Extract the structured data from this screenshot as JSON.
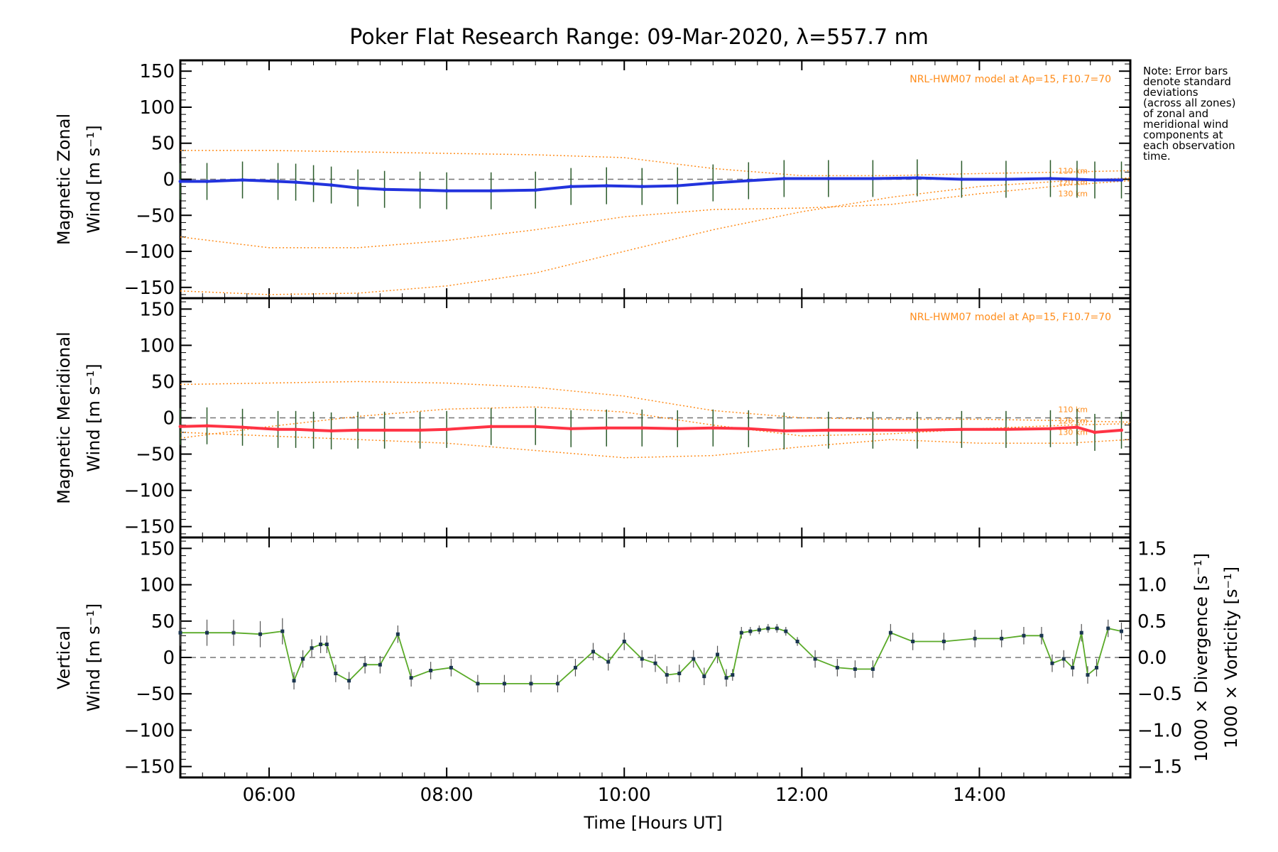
{
  "title": "Poker Flat Research Range: 09-Mar-2020, λ=557.7 nm",
  "note": [
    "Note: Error bars",
    "denote standard",
    "deviations",
    "(across all zones)",
    "of zonal and",
    "meridional wind",
    "components at",
    "each observation",
    "time."
  ],
  "colors": {
    "zonal": "#2233dd",
    "meridional": "#ff3344",
    "vertical": "#5aaa28",
    "model": "#ff8c1a",
    "divergence": "#4aa8d8",
    "vorticity": "#ff5a8a",
    "errorbar": "#000000"
  },
  "chart_data": [
    {
      "type": "line",
      "panel": "zonal",
      "ylabel_lines": [
        "Magnetic Zonal",
        "Wind [m s⁻¹]"
      ],
      "ylim": [
        -165,
        165
      ],
      "yticks": [
        "150",
        "100",
        "50",
        "0",
        "−50",
        "−100",
        "−150"
      ],
      "ytick_values": [
        150,
        100,
        50,
        0,
        -50,
        -100,
        -150
      ],
      "model_label": "NRL-HWM07 model at Ap=15, F10.7=70",
      "altitude_labels": [
        "110 km",
        "120 km",
        "130 km"
      ],
      "x": [
        5.0,
        5.3,
        5.7,
        6.1,
        6.3,
        6.5,
        6.7,
        7.0,
        7.3,
        7.7,
        8.0,
        8.5,
        9.0,
        9.4,
        9.8,
        10.2,
        10.6,
        11.0,
        11.4,
        11.8,
        12.3,
        12.8,
        13.3,
        13.8,
        14.3,
        14.8,
        15.1,
        15.3,
        15.6
      ],
      "values": [
        -3,
        -3,
        -1,
        -3,
        -4,
        -6,
        -8,
        -12,
        -14,
        -15,
        -16,
        -16,
        -15,
        -10,
        -9,
        -10,
        -9,
        -5,
        -2,
        1,
        1,
        1,
        2,
        0,
        0,
        1,
        0,
        -1,
        -1
      ],
      "model_curves": [
        {
          "name": "110 km",
          "x": [
            5.0,
            6.0,
            7.0,
            8.0,
            9.0,
            10.0,
            11.0,
            12.0,
            13.0,
            14.0,
            15.0,
            15.7
          ],
          "values": [
            40,
            40,
            38,
            36,
            34,
            30,
            15,
            5,
            5,
            8,
            10,
            12
          ]
        },
        {
          "name": "120 km",
          "x": [
            5.0,
            6.0,
            7.0,
            8.0,
            9.0,
            10.0,
            11.0,
            12.0,
            13.0,
            14.0,
            15.0,
            15.7
          ],
          "values": [
            -80,
            -95,
            -95,
            -85,
            -70,
            -52,
            -42,
            -40,
            -35,
            -20,
            -8,
            -2
          ]
        },
        {
          "name": "130 km",
          "x": [
            5.0,
            6.0,
            7.0,
            8.0,
            9.0,
            10.0,
            11.0,
            12.0,
            13.0,
            14.0,
            15.0,
            15.7
          ],
          "values": [
            -155,
            -160,
            -158,
            -148,
            -130,
            -100,
            -70,
            -45,
            -25,
            -10,
            -2,
            2
          ]
        }
      ]
    },
    {
      "type": "line",
      "panel": "meridional",
      "ylabel_lines": [
        "Magnetic Meridional",
        "Wind [m s⁻¹]"
      ],
      "ylim": [
        -165,
        165
      ],
      "yticks": [
        "150",
        "100",
        "50",
        "0",
        "−50",
        "−100",
        "−150"
      ],
      "ytick_values": [
        150,
        100,
        50,
        0,
        -50,
        -100,
        -150
      ],
      "model_label": "NRL-HWM07 model at Ap=15, F10.7=70",
      "altitude_labels": [
        "110 km",
        "120 km",
        "130 km"
      ],
      "x": [
        5.0,
        5.3,
        5.7,
        6.1,
        6.3,
        6.5,
        6.7,
        7.0,
        7.3,
        7.7,
        8.0,
        8.5,
        9.0,
        9.4,
        9.8,
        10.2,
        10.6,
        11.0,
        11.4,
        11.8,
        12.3,
        12.8,
        13.3,
        13.8,
        14.3,
        14.8,
        15.1,
        15.3,
        15.6
      ],
      "values": [
        -12,
        -11,
        -13,
        -16,
        -16,
        -17,
        -18,
        -17,
        -17,
        -17,
        -16,
        -12,
        -12,
        -15,
        -14,
        -14,
        -15,
        -14,
        -15,
        -18,
        -17,
        -17,
        -17,
        -16,
        -16,
        -15,
        -13,
        -20,
        -17
      ],
      "model_curves": [
        {
          "name": "110 km",
          "x": [
            5.0,
            6.0,
            7.0,
            8.0,
            9.0,
            10.0,
            11.0,
            12.0,
            13.0,
            14.0,
            15.0,
            15.7
          ],
          "values": [
            46,
            48,
            50,
            48,
            42,
            30,
            10,
            0,
            -2,
            -2,
            -4,
            -6
          ]
        },
        {
          "name": "120 km",
          "x": [
            5.0,
            6.0,
            7.0,
            8.0,
            9.0,
            10.0,
            11.0,
            12.0,
            13.0,
            14.0,
            15.0,
            15.7
          ],
          "values": [
            -28,
            -12,
            2,
            12,
            15,
            8,
            -10,
            -25,
            -22,
            -15,
            -10,
            -8
          ]
        },
        {
          "name": "130 km",
          "x": [
            5.0,
            6.0,
            7.0,
            8.0,
            9.0,
            10.0,
            11.0,
            12.0,
            13.0,
            14.0,
            15.0,
            15.7
          ],
          "values": [
            -20,
            -25,
            -30,
            -35,
            -45,
            -55,
            -52,
            -40,
            -30,
            -35,
            -35,
            -30
          ]
        }
      ]
    },
    {
      "type": "line",
      "panel": "vertical",
      "ylabel_lines": [
        "Vertical",
        "Wind [m s⁻¹]"
      ],
      "ylim": [
        -165,
        165
      ],
      "yticks": [
        "150",
        "100",
        "50",
        "0",
        "−50",
        "−100",
        "−150"
      ],
      "ytick_values": [
        150,
        100,
        50,
        0,
        -50,
        -100,
        -150
      ],
      "right_ylabels": [
        "1000 × Divergence [s⁻¹]",
        "1000 × Vorticity [s⁻¹]"
      ],
      "right_ylim": [
        -1.65,
        1.65
      ],
      "right_yticks": [
        "1.5",
        "1.0",
        "0.5",
        "0.0",
        "−0.5",
        "−1.0",
        "−1.5"
      ],
      "right_ytick_values": [
        1.5,
        1.0,
        0.5,
        0.0,
        -0.5,
        -1.0,
        -1.5
      ],
      "x": [
        5.0,
        5.3,
        5.6,
        5.9,
        6.15,
        6.28,
        6.38,
        6.48,
        6.58,
        6.65,
        6.75,
        6.9,
        7.08,
        7.25,
        7.45,
        7.6,
        7.82,
        8.05,
        8.35,
        8.65,
        8.95,
        9.25,
        9.45,
        9.65,
        9.82,
        10.0,
        10.2,
        10.35,
        10.48,
        10.62,
        10.78,
        10.9,
        11.05,
        11.15,
        11.22,
        11.32,
        11.42,
        11.52,
        11.62,
        11.72,
        11.82,
        11.95,
        12.15,
        12.4,
        12.6,
        12.8,
        13.0,
        13.25,
        13.6,
        13.95,
        14.25,
        14.5,
        14.7,
        14.82,
        14.95,
        15.05,
        15.15,
        15.22,
        15.32,
        15.45,
        15.6
      ],
      "values": [
        34,
        34,
        34,
        32,
        36,
        -32,
        -2,
        13,
        18,
        18,
        -22,
        -32,
        -10,
        -10,
        32,
        -28,
        -18,
        -14,
        -36,
        -36,
        -36,
        -36,
        -14,
        8,
        -6,
        22,
        -2,
        -8,
        -24,
        -22,
        -2,
        -26,
        4,
        -28,
        -24,
        34,
        36,
        38,
        40,
        40,
        36,
        22,
        -2,
        -14,
        -16,
        -16,
        34,
        22,
        22,
        26,
        26,
        30,
        30,
        -8,
        -2,
        -14,
        34,
        -24,
        -14,
        40,
        36
      ],
      "errors": [
        18,
        18,
        18,
        18,
        18,
        12,
        12,
        12,
        12,
        12,
        12,
        12,
        12,
        12,
        12,
        12,
        12,
        12,
        12,
        12,
        12,
        12,
        12,
        12,
        12,
        12,
        12,
        12,
        12,
        12,
        12,
        12,
        12,
        12,
        8,
        8,
        6,
        6,
        6,
        6,
        6,
        6,
        12,
        12,
        12,
        12,
        12,
        12,
        12,
        12,
        12,
        12,
        12,
        12,
        12,
        12,
        12,
        12,
        12,
        12,
        12
      ]
    }
  ],
  "x_axis": {
    "label": "Time [Hours UT]",
    "range": [
      5.0,
      15.7
    ],
    "ticks": [
      "06:00",
      "08:00",
      "10:00",
      "12:00",
      "14:00"
    ],
    "tick_values": [
      6,
      8,
      10,
      12,
      14
    ]
  }
}
